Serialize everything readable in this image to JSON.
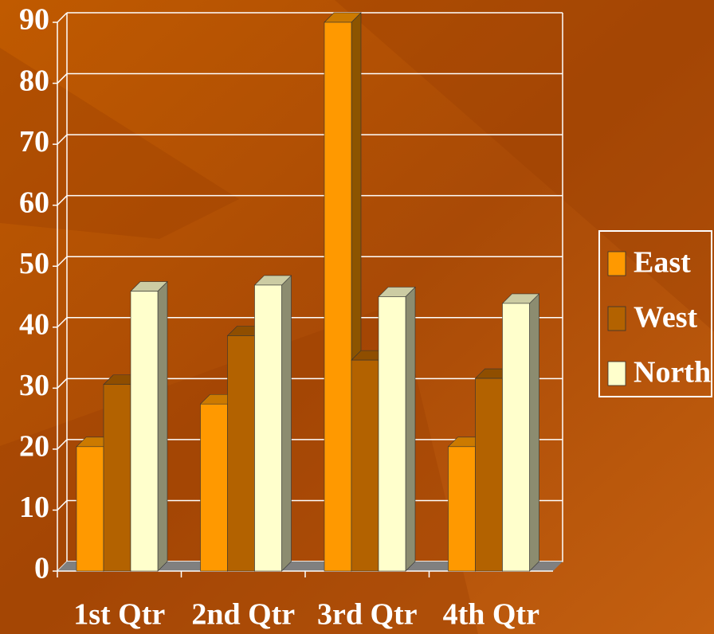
{
  "chart_data": {
    "type": "bar3d",
    "categories": [
      "1st Qtr",
      "2nd Qtr",
      "3rd Qtr",
      "4th Qtr"
    ],
    "series": [
      {
        "name": "East",
        "color": "#ff9900",
        "values": [
          20.4,
          27.4,
          90,
          20.4
        ]
      },
      {
        "name": "West",
        "color": "#b36200",
        "values": [
          30.6,
          38.6,
          34.6,
          31.6
        ]
      },
      {
        "name": "North",
        "color": "#ffffcc",
        "values": [
          45.9,
          46.9,
          45,
          43.9
        ]
      }
    ],
    "ylim": [
      0,
      90
    ],
    "yticks": [
      0,
      10,
      20,
      30,
      40,
      50,
      60,
      70,
      80,
      90
    ],
    "grid": true,
    "legend": "right"
  }
}
